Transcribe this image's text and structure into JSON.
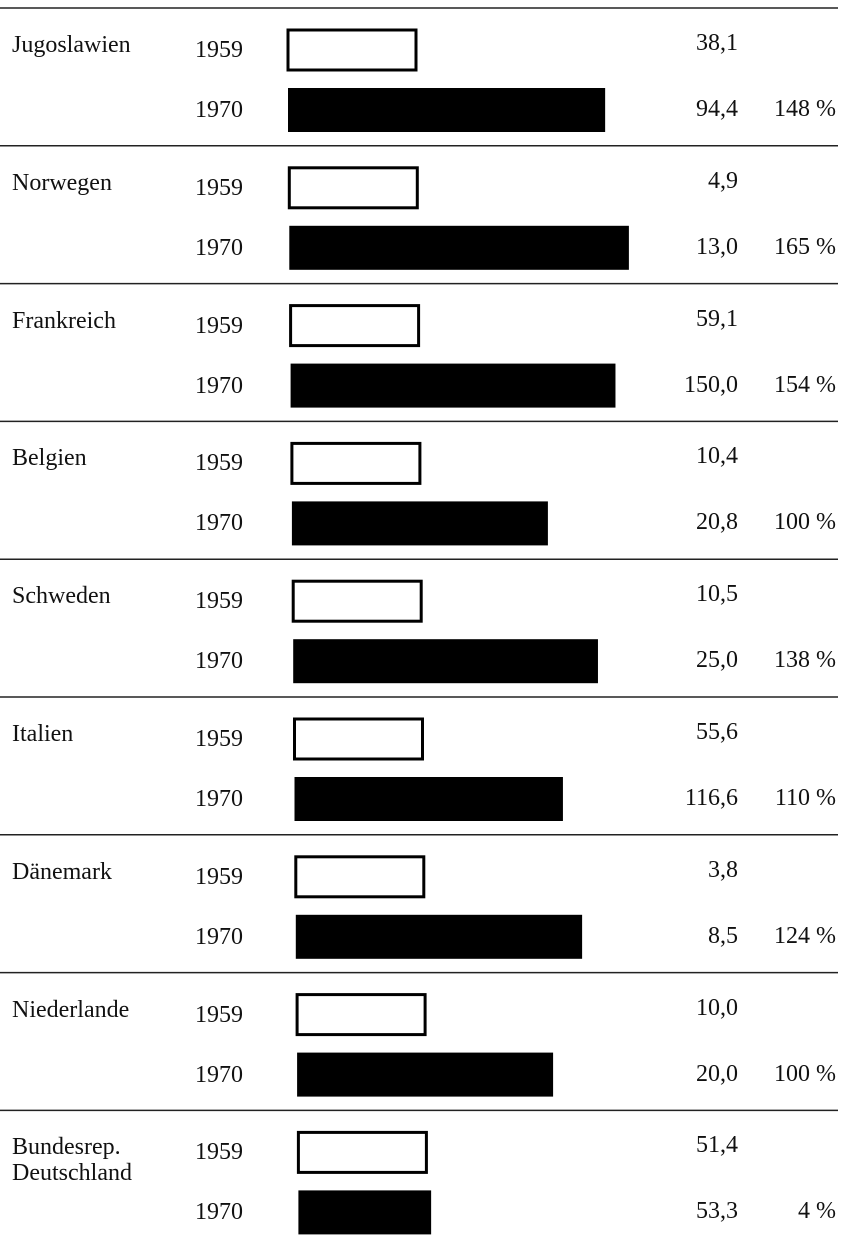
{
  "chart_data": {
    "type": "bar",
    "categories": [
      "Jugoslawien",
      "Norwegen",
      "Frankreich",
      "Belgien",
      "Schweden",
      "Italien",
      "Dänemark",
      "Niederlande",
      "Bundesrep.\nDeutschland"
    ],
    "series": [
      {
        "name": "1959",
        "color": "#ffffff",
        "values": [
          38.1,
          4.9,
          59.1,
          10.4,
          10.5,
          55.6,
          3.8,
          10.0,
          51.4
        ],
        "value_labels": [
          "38,1",
          "4,9",
          "59,1",
          "10,4",
          "10,5",
          "55,6",
          "3,8",
          "10,0",
          "51,4"
        ]
      },
      {
        "name": "1970",
        "color": "#000000",
        "values": [
          94.4,
          13.0,
          150.0,
          20.8,
          25.0,
          116.6,
          8.5,
          20.0,
          53.3
        ],
        "value_labels": [
          "94,4",
          "13,0",
          "150,0",
          "20,8",
          "25,0",
          "116,6",
          "8,5",
          "20,0",
          "53,3"
        ]
      }
    ],
    "percent_change": [
      148,
      165,
      154,
      100,
      138,
      110,
      124,
      100,
      4
    ],
    "percent_change_labels": [
      "148 %",
      "165 %",
      "154 %",
      "100 %",
      "138 %",
      "110 %",
      "124 %",
      "100 %",
      "4 %"
    ]
  }
}
